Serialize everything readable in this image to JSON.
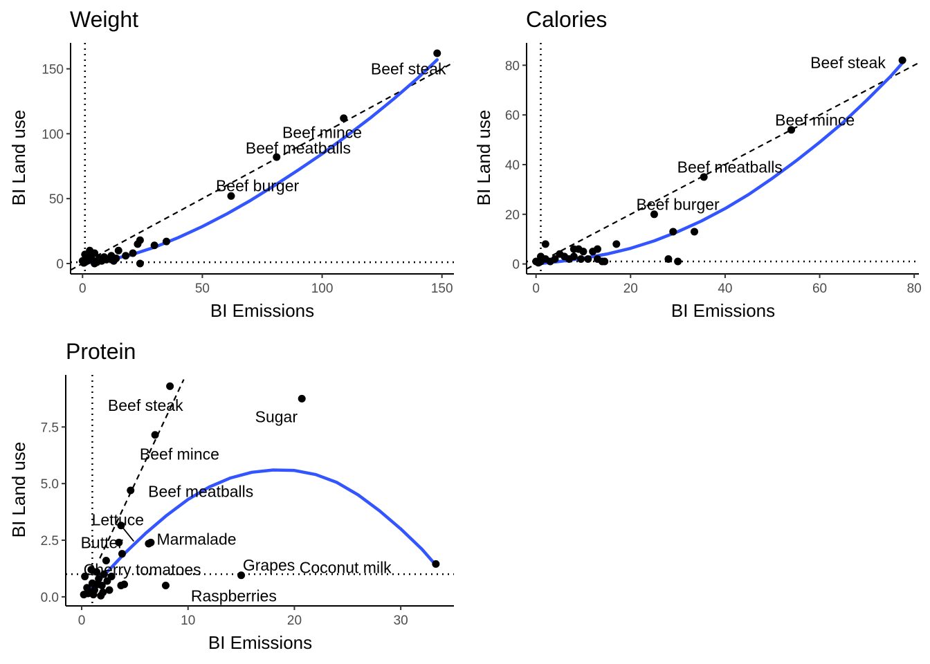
{
  "chart_data": [
    {
      "type": "scatter",
      "title": "Weight",
      "xlabel": "BI Emissions",
      "ylabel": "BI Land use",
      "xlim": [
        -5,
        155
      ],
      "ylim": [
        -8,
        170
      ],
      "xticks": [
        0,
        50,
        100,
        150
      ],
      "yticks": [
        0,
        50,
        100,
        150
      ],
      "ref_lines": {
        "vertical_x": 1,
        "horizontal_y": 1,
        "dashed_slope": 1.0,
        "dashed_intercept": 0
      },
      "fit_color": "#3355FF",
      "fit_curve": [
        [
          0,
          0
        ],
        [
          10,
          2.5
        ],
        [
          20,
          6.5
        ],
        [
          30,
          12.5
        ],
        [
          40,
          20
        ],
        [
          50,
          28.5
        ],
        [
          60,
          38
        ],
        [
          70,
          48.5
        ],
        [
          80,
          60
        ],
        [
          90,
          72
        ],
        [
          100,
          84.5
        ],
        [
          110,
          98
        ],
        [
          120,
          112
        ],
        [
          130,
          127
        ],
        [
          140,
          143
        ],
        [
          148,
          157
        ]
      ],
      "points": [
        {
          "x": 148,
          "y": 162
        },
        {
          "x": 109,
          "y": 112
        },
        {
          "x": 81,
          "y": 82
        },
        {
          "x": 62,
          "y": 52
        },
        {
          "x": 35,
          "y": 17
        },
        {
          "x": 30,
          "y": 14
        },
        {
          "x": 24,
          "y": 18
        },
        {
          "x": 23,
          "y": 15
        },
        {
          "x": 24,
          "y": 0
        },
        {
          "x": 21,
          "y": 8
        },
        {
          "x": 18,
          "y": 6
        },
        {
          "x": 15,
          "y": 10
        },
        {
          "x": 14,
          "y": 4
        },
        {
          "x": 12,
          "y": 6
        },
        {
          "x": 10,
          "y": 3
        },
        {
          "x": 9,
          "y": 5
        },
        {
          "x": 8,
          "y": 2
        },
        {
          "x": 7,
          "y": 4
        },
        {
          "x": 6,
          "y": 1
        },
        {
          "x": 5,
          "y": 8
        },
        {
          "x": 4,
          "y": 3
        },
        {
          "x": 3,
          "y": 10
        },
        {
          "x": 3,
          "y": 6
        },
        {
          "x": 2,
          "y": 2
        },
        {
          "x": 2,
          "y": 5
        },
        {
          "x": 1,
          "y": 1
        },
        {
          "x": 1,
          "y": 3
        },
        {
          "x": 0.5,
          "y": 0.5
        },
        {
          "x": 0,
          "y": 2
        },
        {
          "x": 1,
          "y": 7
        },
        {
          "x": 5,
          "y": 0
        },
        {
          "x": 13,
          "y": 2
        }
      ],
      "labels": [
        {
          "text": "Beef steak",
          "x": 148,
          "y": 162,
          "lx": 136,
          "ly": 150
        },
        {
          "text": "Beef mince",
          "x": 109,
          "y": 112,
          "lx": 100,
          "ly": 101
        },
        {
          "text": "Beef meatballs",
          "x": 81,
          "y": 82,
          "lx": 90,
          "ly": 89
        },
        {
          "text": "Beef burger",
          "x": 62,
          "y": 52,
          "lx": 73,
          "ly": 60
        }
      ]
    },
    {
      "type": "scatter",
      "title": "Calories",
      "xlabel": "BI Emissions",
      "ylabel": "BI Land use",
      "xlim": [
        -2,
        81
      ],
      "ylim": [
        -4,
        89
      ],
      "xticks": [
        0,
        20,
        40,
        60,
        80
      ],
      "yticks": [
        0,
        20,
        40,
        60,
        80
      ],
      "ref_lines": {
        "vertical_x": 1,
        "horizontal_y": 1,
        "dashed_slope": 1.0,
        "dashed_intercept": 0
      },
      "fit_color": "#3355FF",
      "fit_curve": [
        [
          0,
          0
        ],
        [
          5,
          1
        ],
        [
          10,
          2.3
        ],
        [
          15,
          4
        ],
        [
          20,
          6.3
        ],
        [
          25,
          9.3
        ],
        [
          30,
          13
        ],
        [
          35,
          17.3
        ],
        [
          40,
          22.3
        ],
        [
          45,
          28
        ],
        [
          50,
          34.5
        ],
        [
          55,
          41.5
        ],
        [
          60,
          49
        ],
        [
          65,
          57
        ],
        [
          70,
          66
        ],
        [
          75,
          75.5
        ],
        [
          78,
          82
        ]
      ],
      "points": [
        {
          "x": 77.5,
          "y": 82
        },
        {
          "x": 54,
          "y": 54
        },
        {
          "x": 35.5,
          "y": 35
        },
        {
          "x": 25,
          "y": 20
        },
        {
          "x": 33.5,
          "y": 13
        },
        {
          "x": 29,
          "y": 13
        },
        {
          "x": 28,
          "y": 2
        },
        {
          "x": 30,
          "y": 1
        },
        {
          "x": 17,
          "y": 8
        },
        {
          "x": 14,
          "y": 1
        },
        {
          "x": 13,
          "y": 6
        },
        {
          "x": 13,
          "y": 2
        },
        {
          "x": 12,
          "y": 5
        },
        {
          "x": 11,
          "y": 2
        },
        {
          "x": 10,
          "y": 5
        },
        {
          "x": 9,
          "y": 6
        },
        {
          "x": 8,
          "y": 3
        },
        {
          "x": 8,
          "y": 6
        },
        {
          "x": 7,
          "y": 2
        },
        {
          "x": 6,
          "y": 3
        },
        {
          "x": 5,
          "y": 4
        },
        {
          "x": 4,
          "y": 2
        },
        {
          "x": 3,
          "y": 1
        },
        {
          "x": 2,
          "y": 8
        },
        {
          "x": 2,
          "y": 2
        },
        {
          "x": 1,
          "y": 3
        },
        {
          "x": 1,
          "y": 1
        },
        {
          "x": 0.5,
          "y": 0.5
        },
        {
          "x": 0,
          "y": 1
        },
        {
          "x": 14.5,
          "y": 1
        },
        {
          "x": 9.5,
          "y": 2
        }
      ],
      "labels": [
        {
          "text": "Beef steak",
          "x": 77.5,
          "y": 82,
          "lx": 66,
          "ly": 81
        },
        {
          "text": "Beef mince",
          "x": 54,
          "y": 54,
          "lx": 59,
          "ly": 58
        },
        {
          "text": "Beef meatballs",
          "x": 35.5,
          "y": 35,
          "lx": 41,
          "ly": 39
        },
        {
          "text": "Beef burger",
          "x": 25,
          "y": 20,
          "lx": 30,
          "ly": 24
        }
      ]
    },
    {
      "type": "scatter",
      "title": "Protein",
      "xlabel": "BI Emissions",
      "ylabel": "BI Land use",
      "xlim": [
        -1.5,
        35
      ],
      "ylim": [
        -0.4,
        9.8
      ],
      "xticks": [
        0,
        10,
        20,
        30
      ],
      "yticks": [
        0.0,
        2.5,
        5.0,
        7.5
      ],
      "yticklabels": [
        "0.0",
        "2.5",
        "5.0",
        "7.5"
      ],
      "ref_lines": {
        "vertical_x": 1,
        "horizontal_y": 1,
        "dashed_slope": 1.0,
        "dashed_intercept": 0
      },
      "fit_color": "#3355FF",
      "fit_curve": [
        [
          0.3,
          0.2
        ],
        [
          2,
          0.9
        ],
        [
          4,
          1.9
        ],
        [
          6,
          2.8
        ],
        [
          8,
          3.6
        ],
        [
          10,
          4.3
        ],
        [
          12,
          4.85
        ],
        [
          14,
          5.25
        ],
        [
          16,
          5.5
        ],
        [
          18,
          5.6
        ],
        [
          20,
          5.58
        ],
        [
          22,
          5.4
        ],
        [
          24,
          5.05
        ],
        [
          26,
          4.5
        ],
        [
          28,
          3.8
        ],
        [
          30,
          3.0
        ],
        [
          32,
          2.1
        ],
        [
          33.3,
          1.4
        ]
      ],
      "dashed_segment": [
        [
          1.7,
          1.7
        ],
        [
          9.6,
          9.6
        ]
      ],
      "points": [
        {
          "x": 8.3,
          "y": 9.3
        },
        {
          "x": 20.7,
          "y": 8.75
        },
        {
          "x": 6.9,
          "y": 7.15
        },
        {
          "x": 4.6,
          "y": 4.7
        },
        {
          "x": 3.7,
          "y": 3.15
        },
        {
          "x": 6.5,
          "y": 2.4
        },
        {
          "x": 6.3,
          "y": 2.35
        },
        {
          "x": 3.5,
          "y": 2.4
        },
        {
          "x": 2.3,
          "y": 1.6
        },
        {
          "x": 3.8,
          "y": 1.9
        },
        {
          "x": 15,
          "y": 0.95
        },
        {
          "x": 33.3,
          "y": 1.45
        },
        {
          "x": 7.9,
          "y": 0.5
        },
        {
          "x": 4.0,
          "y": 0.55
        },
        {
          "x": 3.7,
          "y": 0.5
        },
        {
          "x": 1.8,
          "y": 0.05
        },
        {
          "x": 0.3,
          "y": 0.9
        },
        {
          "x": 0.5,
          "y": 0.4
        },
        {
          "x": 0.8,
          "y": 0.2
        },
        {
          "x": 1.0,
          "y": 0.6
        },
        {
          "x": 1.2,
          "y": 0.3
        },
        {
          "x": 1.4,
          "y": 1.1
        },
        {
          "x": 1.6,
          "y": 0.8
        },
        {
          "x": 1.9,
          "y": 0.5
        },
        {
          "x": 2.1,
          "y": 1.0
        },
        {
          "x": 2.4,
          "y": 0.7
        },
        {
          "x": 2.6,
          "y": 0.3
        },
        {
          "x": 0.2,
          "y": 0.1
        },
        {
          "x": 0.6,
          "y": 0.15
        },
        {
          "x": 1.1,
          "y": 0.1
        },
        {
          "x": 2.0,
          "y": 0.2
        },
        {
          "x": 1.5,
          "y": 0.55
        },
        {
          "x": 2.8,
          "y": 0.9
        },
        {
          "x": 0.9,
          "y": 1.2
        }
      ],
      "labels": [
        {
          "text": "Beef steak",
          "x": 8.3,
          "y": 9.3,
          "lx": 6.0,
          "ly": 8.45
        },
        {
          "text": "Sugar",
          "x": 20.7,
          "y": 8.75,
          "lx": 18.3,
          "ly": 7.95
        },
        {
          "text": "Beef mince",
          "x": 6.9,
          "y": 7.15,
          "lx": 9.2,
          "ly": 6.3
        },
        {
          "text": "Beef meatballs",
          "x": 4.6,
          "y": 4.7,
          "lx": 11.2,
          "ly": 4.65
        },
        {
          "text": "Lettuce",
          "x": 3.7,
          "y": 3.15,
          "lx": 3.4,
          "ly": 3.4
        },
        {
          "text": "Butter",
          "x": 3.5,
          "y": 2.4,
          "lx": 1.9,
          "ly": 2.4
        },
        {
          "text": "Marmalade",
          "x": 6.5,
          "y": 2.4,
          "lx": 10.8,
          "ly": 2.55
        },
        {
          "text": "Cherry tomatoes",
          "x": 2.1,
          "y": 1.0,
          "lx": 5.7,
          "ly": 1.2
        },
        {
          "text": "Grapes",
          "x": 15,
          "y": 0.95,
          "lx": 17.6,
          "ly": 1.4
        },
        {
          "text": "Coconut milk",
          "x": 33.3,
          "y": 1.45,
          "lx": 24.8,
          "ly": 1.3
        },
        {
          "text": "Raspberries",
          "x": 7.9,
          "y": 0.5,
          "lx": 14.3,
          "ly": 0.05
        }
      ],
      "label_segments": [
        {
          "from": [
            3.7,
            3.15
          ],
          "to": [
            4.9,
            2.45
          ]
        }
      ]
    }
  ]
}
